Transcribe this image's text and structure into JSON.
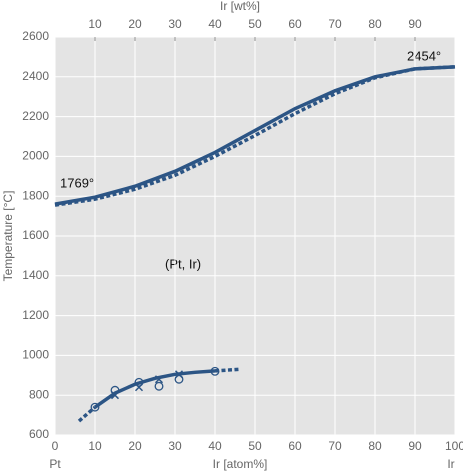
{
  "chart_data": {
    "type": "line",
    "xlabel": "Ir [atom%]",
    "x2label": "Ir [wt%]",
    "ylabel": "Temperature [°C]",
    "end_labels": [
      "Pt",
      "Ir"
    ],
    "annotations": [
      "1769°",
      "2454°",
      "(Pt, Ir)"
    ],
    "xlim": [
      0,
      100
    ],
    "xticks": [
      0,
      10,
      20,
      30,
      40,
      50,
      60,
      70,
      80,
      90,
      100
    ],
    "x2lim": [
      0,
      100
    ],
    "x2ticks": [
      10,
      20,
      30,
      40,
      50,
      60,
      70,
      80,
      90
    ],
    "ylim": [
      600,
      2600
    ],
    "yticks": [
      600,
      800,
      1000,
      1200,
      1400,
      1600,
      1800,
      2000,
      2200,
      2400,
      2600
    ],
    "grid": true,
    "color": "#2c5585",
    "series": [
      {
        "style": "solid",
        "x": [
          0,
          10,
          20,
          30,
          40,
          50,
          60,
          70,
          80,
          90,
          100
        ],
        "values": [
          1760,
          1795,
          1850,
          1925,
          2020,
          2130,
          2240,
          2330,
          2400,
          2440,
          2450
        ]
      },
      {
        "style": "dashed",
        "x": [
          0,
          10,
          20,
          30,
          40,
          50,
          60,
          70,
          80,
          90,
          100
        ],
        "values": [
          1755,
          1785,
          1835,
          1905,
          2000,
          2105,
          2215,
          2315,
          2395,
          2440,
          2450
        ]
      },
      {
        "style": "solid",
        "x": [
          10,
          15,
          20,
          25,
          30,
          35,
          40
        ],
        "values": [
          740,
          810,
          855,
          885,
          905,
          915,
          922
        ]
      },
      {
        "style": "dashed",
        "x": [
          6,
          10
        ],
        "values": [
          670,
          740
        ]
      },
      {
        "style": "dashed",
        "x": [
          40,
          46
        ],
        "values": [
          922,
          930
        ]
      }
    ],
    "points": [
      {
        "marker": "circle",
        "x": [
          10,
          15,
          21,
          26,
          31,
          40
        ],
        "values": [
          740,
          825,
          865,
          845,
          880,
          920
        ]
      },
      {
        "marker": "cross",
        "x": [
          15,
          21,
          26,
          31
        ],
        "values": [
          800,
          840,
          880,
          905
        ]
      }
    ]
  }
}
